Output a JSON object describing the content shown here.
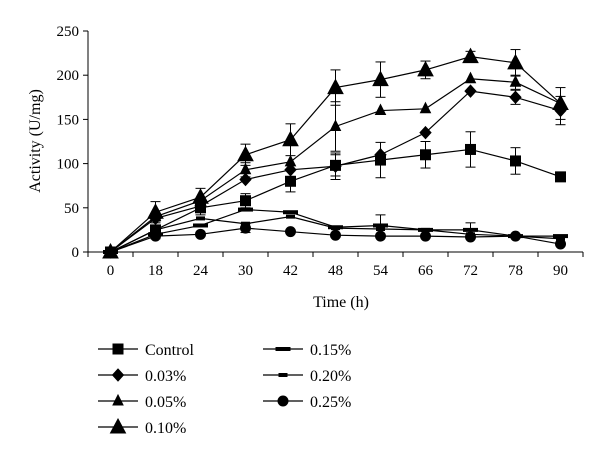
{
  "chart_data": {
    "type": "line",
    "title": "",
    "xlabel": "Time (h)",
    "ylabel": "Activity (U/mg)",
    "categories": [
      "0",
      "18",
      "24",
      "30",
      "42",
      "48",
      "54",
      "66",
      "72",
      "78",
      "90"
    ],
    "ylim": [
      0,
      250
    ],
    "yticks": [
      "0",
      "50",
      "100",
      "150",
      "200",
      "250"
    ],
    "grid": false,
    "legend_position": "bottom",
    "series": [
      {
        "name": "Control",
        "marker": "square",
        "values": [
          0,
          25,
          50,
          58,
          80,
          98,
          104,
          110,
          116,
          103,
          85
        ],
        "errors": [
          0,
          10,
          8,
          8,
          12,
          12,
          20,
          15,
          20,
          15,
          5
        ]
      },
      {
        "name": "0.03%",
        "marker": "diamond",
        "values": [
          0,
          38,
          52,
          82,
          93,
          97,
          110,
          135,
          182,
          175,
          160
        ],
        "errors": [
          0,
          0,
          0,
          0,
          0,
          15,
          0,
          0,
          0,
          8,
          16
        ]
      },
      {
        "name": "0.05%",
        "marker": "triangle-small",
        "values": [
          0,
          40,
          58,
          93,
          102,
          142,
          160,
          162,
          196,
          192,
          168
        ],
        "errors": [
          0,
          0,
          0,
          8,
          0,
          28,
          0,
          0,
          0,
          8,
          0
        ]
      },
      {
        "name": "0.10%",
        "marker": "triangle-large",
        "values": [
          0,
          45,
          62,
          110,
          127,
          186,
          195,
          206,
          221,
          214,
          168
        ],
        "errors": [
          0,
          12,
          10,
          12,
          18,
          20,
          20,
          10,
          6,
          15,
          18
        ]
      },
      {
        "name": "0.15%",
        "marker": "dash",
        "values": [
          0,
          20,
          30,
          48,
          45,
          28,
          30,
          25,
          25,
          18,
          18
        ],
        "errors": [
          0,
          0,
          0,
          0,
          0,
          0,
          12,
          0,
          8,
          0,
          0
        ]
      },
      {
        "name": "0.20%",
        "marker": "dash-small",
        "values": [
          0,
          25,
          38,
          32,
          40,
          27,
          26,
          25,
          20,
          18,
          15
        ],
        "errors": [
          0,
          0,
          0,
          0,
          0,
          0,
          0,
          0,
          0,
          0,
          0
        ]
      },
      {
        "name": "0.25%",
        "marker": "circle",
        "values": [
          0,
          18,
          20,
          27,
          23,
          19,
          18,
          18,
          17,
          18,
          9
        ],
        "errors": [
          0,
          0,
          0,
          5,
          0,
          0,
          0,
          0,
          0,
          0,
          0
        ]
      }
    ]
  }
}
